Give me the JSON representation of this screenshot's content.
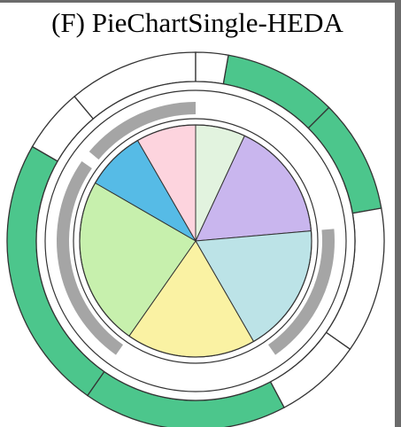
{
  "chart_data": {
    "type": "pie",
    "title": "(F) PieChartSingle-HEDA",
    "slices": [
      {
        "start_deg": 0,
        "end_deg": 25,
        "color": "#e2f3df"
      },
      {
        "start_deg": 25,
        "end_deg": 85,
        "color": "#c9b6ee"
      },
      {
        "start_deg": 85,
        "end_deg": 150,
        "color": "#bce3e7"
      },
      {
        "start_deg": 150,
        "end_deg": 215,
        "color": "#faf2a3"
      },
      {
        "start_deg": 215,
        "end_deg": 300,
        "color": "#c7f0ad"
      },
      {
        "start_deg": 300,
        "end_deg": 330,
        "color": "#56bbe6"
      },
      {
        "start_deg": 330,
        "end_deg": 360,
        "color": "#fdd4de"
      }
    ],
    "gray_ring_arcs": [
      {
        "start_deg": 310,
        "end_deg": 360
      },
      {
        "start_deg": 215,
        "end_deg": 305
      },
      {
        "start_deg": 85,
        "end_deg": 145
      }
    ],
    "outer_ring_segments": [
      {
        "start_deg": 10,
        "end_deg": 45,
        "highlighted": true
      },
      {
        "start_deg": 45,
        "end_deg": 80,
        "highlighted": true
      },
      {
        "start_deg": 80,
        "end_deg": 125,
        "highlighted": false
      },
      {
        "start_deg": 125,
        "end_deg": 152,
        "highlighted": false
      },
      {
        "start_deg": 152,
        "end_deg": 215,
        "highlighted": true
      },
      {
        "start_deg": 215,
        "end_deg": 300,
        "highlighted": true
      },
      {
        "start_deg": 300,
        "end_deg": 320,
        "highlighted": false
      },
      {
        "start_deg": 320,
        "end_deg": 360,
        "highlighted": false
      },
      {
        "start_deg": 0,
        "end_deg": 10,
        "highlighted": false
      }
    ],
    "colors": {
      "highlight": "#4cc68c",
      "gray": "#a5a5a5",
      "stroke": "#333333"
    }
  }
}
